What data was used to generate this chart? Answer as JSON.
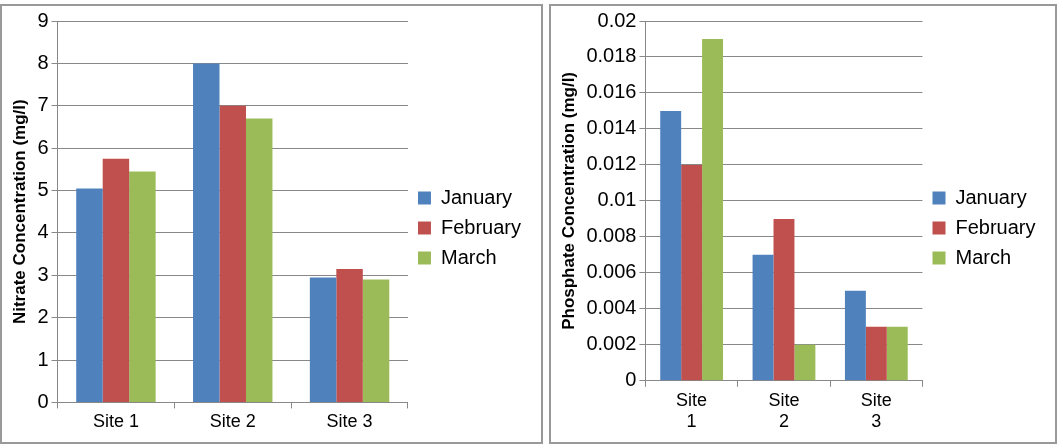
{
  "chart_data": [
    {
      "type": "bar",
      "ylabel": "Nitrate Concentration (mg/l)",
      "categories": [
        "Site 1",
        "Site 2",
        "Site 3"
      ],
      "series": [
        {
          "name": "January",
          "color": "#4f81bd",
          "values": [
            5.05,
            8,
            2.95
          ]
        },
        {
          "name": "February",
          "color": "#c0504d",
          "values": [
            5.75,
            7,
            3.15
          ]
        },
        {
          "name": "March",
          "color": "#9bbb59",
          "values": [
            5.45,
            6.7,
            2.9
          ]
        }
      ],
      "ylim": [
        0,
        9
      ],
      "yticks": [
        0,
        1,
        2,
        3,
        4,
        5,
        6,
        7,
        8,
        9
      ],
      "grid": "y",
      "legend": "right"
    },
    {
      "type": "bar",
      "ylabel": "Phosphate Concentration (mg/l)",
      "categories": [
        "Site 1",
        "Site 2",
        "Site 3"
      ],
      "series": [
        {
          "name": "January",
          "color": "#4f81bd",
          "values": [
            0.015,
            0.007,
            0.005
          ]
        },
        {
          "name": "February",
          "color": "#c0504d",
          "values": [
            0.012,
            0.009,
            0.003
          ]
        },
        {
          "name": "March",
          "color": "#9bbb59",
          "values": [
            0.019,
            0.002,
            0.003
          ]
        }
      ],
      "ylim": [
        0,
        0.02
      ],
      "yticks": [
        0,
        0.002,
        0.004,
        0.006,
        0.008,
        0.01,
        0.012,
        0.014,
        0.016,
        0.018,
        0.02
      ],
      "grid": "y",
      "legend": "right"
    }
  ]
}
